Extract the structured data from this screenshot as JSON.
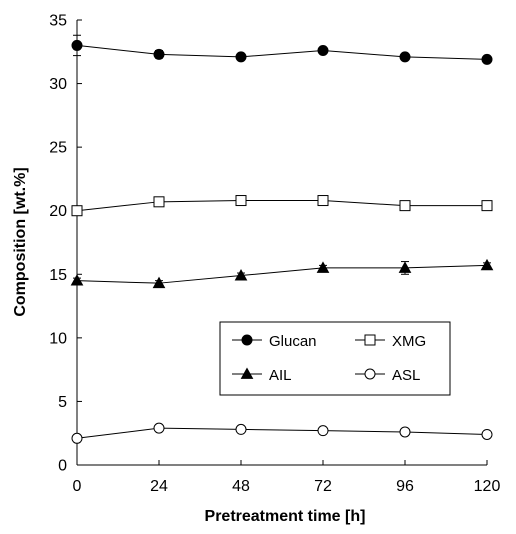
{
  "chart_data": {
    "type": "line",
    "title": "",
    "xlabel": "Pretreatment time [h]",
    "ylabel": "Composition  [wt.%]",
    "x": [
      0,
      24,
      48,
      72,
      96,
      120
    ],
    "xticks": [
      "0",
      "24",
      "48",
      "72",
      "96",
      "120"
    ],
    "yticks": [
      "0",
      "5",
      "10",
      "15",
      "20",
      "25",
      "30",
      "35"
    ],
    "xlim": [
      0,
      120
    ],
    "ylim": [
      0,
      35
    ],
    "grid": false,
    "legend_position": "lower-right",
    "series": [
      {
        "name": "Glucan",
        "marker": "filled-circle",
        "values": [
          33.0,
          32.3,
          32.1,
          32.6,
          32.1,
          31.9
        ],
        "errors": [
          0.8,
          0.3,
          0.2,
          0.2,
          0.2,
          0.2
        ]
      },
      {
        "name": "XMG",
        "marker": "open-square",
        "values": [
          20.0,
          20.7,
          20.8,
          20.8,
          20.4,
          20.4
        ],
        "errors": [
          0.3,
          0.2,
          0.2,
          0.2,
          0.2,
          0.2
        ]
      },
      {
        "name": "AIL",
        "marker": "filled-triangle",
        "values": [
          14.5,
          14.3,
          14.9,
          15.5,
          15.5,
          15.7
        ],
        "errors": [
          0.2,
          0.2,
          0.2,
          0.2,
          0.5,
          0.2
        ]
      },
      {
        "name": "ASL",
        "marker": "open-circle",
        "values": [
          2.1,
          2.9,
          2.8,
          2.7,
          2.6,
          2.4
        ],
        "errors": [
          0.1,
          0.1,
          0.1,
          0.1,
          0.1,
          0.1
        ]
      }
    ],
    "colors": {
      "line": "#000000",
      "axis": "#000000",
      "legend_border": "#000000"
    }
  }
}
